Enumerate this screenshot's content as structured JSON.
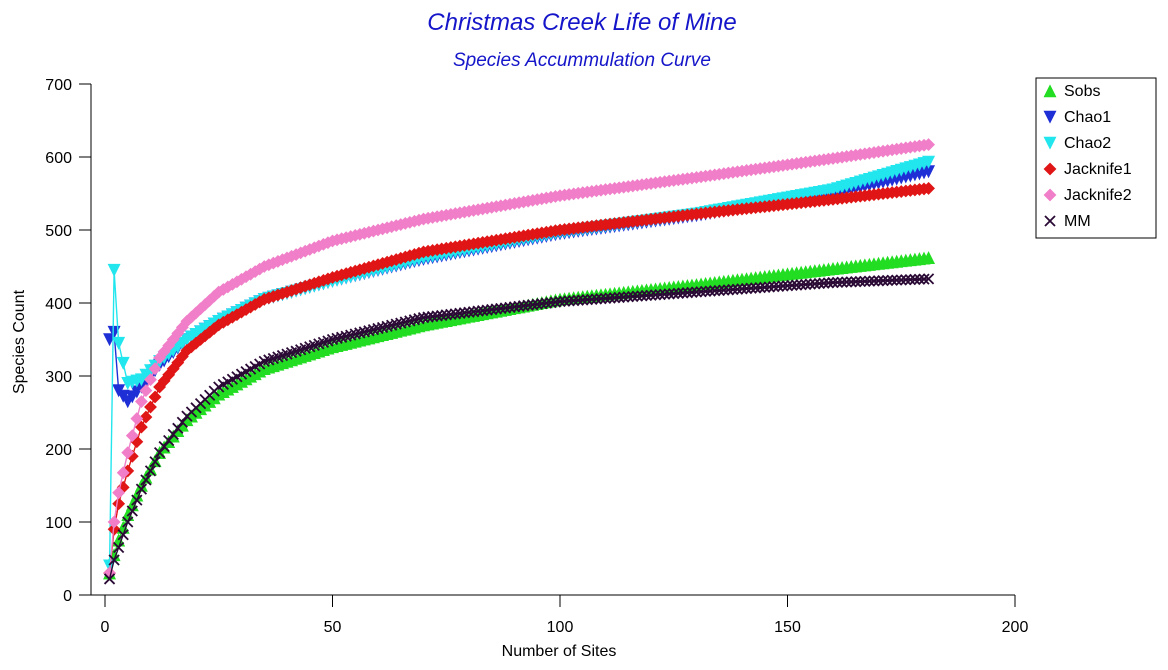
{
  "colors": {
    "title": "#1515c9",
    "sobs": "#22dd22",
    "chao1": "#1f2fd6",
    "chao2": "#22e6ee",
    "jacknife1": "#e01515",
    "jacknife2": "#f07ec8",
    "mm": "#2a0a35"
  },
  "chart_data": {
    "type": "line",
    "title": "Christmas Creek Life of Mine",
    "subtitle": "Species Accummulation Curve",
    "xlabel": "Number of Sites",
    "ylabel": "Species Count",
    "xlim": [
      0,
      200
    ],
    "ylim": [
      0,
      700
    ],
    "x_ticks": [
      "0",
      "50",
      "100",
      "150",
      "200"
    ],
    "y_ticks": [
      "0",
      "100",
      "200",
      "300",
      "400",
      "500",
      "600",
      "700"
    ],
    "grid": false,
    "legend_position": "top-right",
    "series": [
      {
        "name": "Sobs",
        "color_key": "sobs",
        "marker": "triangle-up",
        "x": [
          1,
          2,
          3,
          5,
          8,
          12,
          18,
          25,
          35,
          50,
          70,
          100,
          130,
          160,
          181
        ],
        "y": [
          30,
          55,
          75,
          110,
          150,
          195,
          240,
          275,
          310,
          340,
          370,
          405,
          425,
          447,
          462
        ]
      },
      {
        "name": "Chao1",
        "color_key": "chao1",
        "marker": "triangle-down",
        "x": [
          1,
          2,
          3,
          5,
          8,
          12,
          18,
          25,
          35,
          50,
          70,
          100,
          130,
          160,
          181
        ],
        "y": [
          350,
          360,
          280,
          265,
          285,
          315,
          350,
          375,
          405,
          430,
          460,
          495,
          520,
          550,
          580
        ]
      },
      {
        "name": "Chao2",
        "color_key": "chao2",
        "marker": "triangle-down",
        "x": [
          1,
          2,
          3,
          5,
          8,
          12,
          18,
          25,
          35,
          50,
          70,
          100,
          130,
          160,
          181
        ],
        "y": [
          40,
          445,
          345,
          290,
          295,
          320,
          350,
          375,
          405,
          430,
          462,
          497,
          522,
          555,
          593
        ]
      },
      {
        "name": "Jacknife1",
        "color_key": "jacknife1",
        "marker": "diamond",
        "x": [
          1,
          2,
          3,
          5,
          8,
          12,
          18,
          25,
          35,
          50,
          70,
          100,
          130,
          160,
          181
        ],
        "y": [
          30,
          90,
          125,
          170,
          230,
          285,
          335,
          370,
          405,
          435,
          470,
          500,
          522,
          542,
          557
        ]
      },
      {
        "name": "Jacknife2",
        "color_key": "jacknife2",
        "marker": "diamond",
        "x": [
          1,
          2,
          3,
          5,
          8,
          12,
          18,
          25,
          35,
          50,
          70,
          100,
          130,
          160,
          181
        ],
        "y": [
          30,
          100,
          140,
          195,
          265,
          325,
          375,
          415,
          450,
          485,
          515,
          547,
          572,
          598,
          617
        ]
      },
      {
        "name": "MM",
        "color_key": "mm",
        "marker": "x",
        "x": [
          1,
          2,
          3,
          5,
          8,
          12,
          18,
          25,
          35,
          50,
          70,
          100,
          130,
          160,
          181
        ],
        "y": [
          22,
          48,
          65,
          100,
          145,
          195,
          245,
          285,
          320,
          350,
          380,
          402,
          415,
          428,
          433
        ]
      }
    ]
  }
}
